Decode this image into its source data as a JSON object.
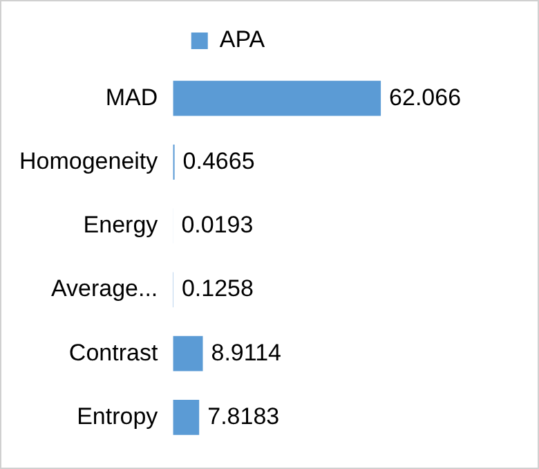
{
  "chart_data": {
    "type": "bar",
    "orientation": "horizontal",
    "categories": [
      "MAD",
      "Homogeneity",
      "Energy",
      "Average...",
      "Contrast",
      "Entropy"
    ],
    "series": [
      {
        "name": "APA",
        "color": "#5b9bd5",
        "values": [
          62.066,
          0.4665,
          0.0193,
          0.1258,
          8.9114,
          7.8183
        ]
      }
    ],
    "data_labels": true,
    "legend": "top",
    "grid": false,
    "tick_labels": "y"
  }
}
